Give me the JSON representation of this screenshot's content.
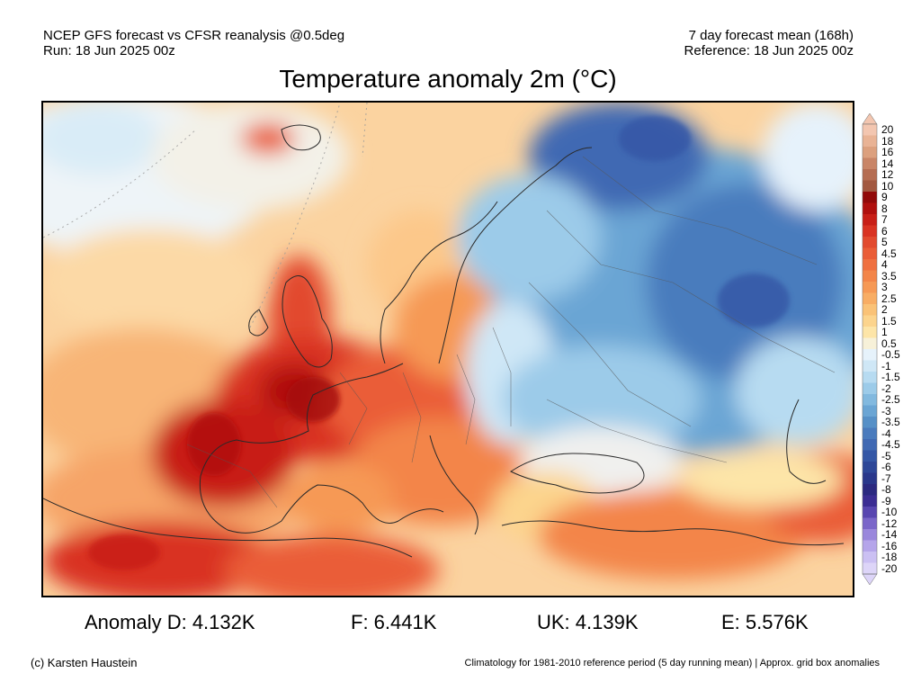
{
  "header": {
    "left_line1": "NCEP GFS forecast vs CFSR reanalysis @0.5deg",
    "left_line2": "Run: 18 Jun 2025 00z",
    "right_line1": "7 day forecast mean (168h)",
    "right_line2": "Reference: 18 Jun 2025 00z"
  },
  "title": "Temperature anomaly 2m (°C)",
  "colorbar": {
    "labels": [
      "20",
      "18",
      "16",
      "14",
      "12",
      "10",
      "9",
      "8",
      "7",
      "6",
      "5",
      "4.5",
      "4",
      "3.5",
      "3",
      "2.5",
      "2",
      "1.5",
      "1",
      "0.5",
      "-0.5",
      "-1",
      "-1.5",
      "-2",
      "-2.5",
      "-3",
      "-3.5",
      "-4",
      "-4.5",
      "-5",
      "-6",
      "-7",
      "-8",
      "-9",
      "-10",
      "-12",
      "-14",
      "-16",
      "-18",
      "-20"
    ],
    "colors": [
      "#f3c6b0",
      "#e9b395",
      "#dca07e",
      "#c98567",
      "#b56d52",
      "#a25840",
      "#920a0a",
      "#b0100e",
      "#c81f17",
      "#d93322",
      "#e24a2e",
      "#ea5d37",
      "#ef7040",
      "#f38549",
      "#f69955",
      "#f8ad64",
      "#fac277",
      "#fcd48d",
      "#fde5a8",
      "#f7f1d9",
      "#e6f2fb",
      "#cfe7f6",
      "#b7dbf1",
      "#9ccbe9",
      "#82b9df",
      "#6aa5d4",
      "#5690c7",
      "#4a7bbd",
      "#4069b3",
      "#3457a6",
      "#2d4798",
      "#29378b",
      "#2b2980",
      "#3b2d93",
      "#5846b0",
      "#7a66c9",
      "#9a87dc",
      "#b5a5ea",
      "#cbc0f3",
      "#ddd5f8"
    ]
  },
  "stats": {
    "d": "Anomaly D: 4.132K",
    "f": "F: 6.441K",
    "uk": "UK: 4.139K",
    "e": "E: 5.576K"
  },
  "footer": {
    "left": "(c) Karsten Haustein",
    "right": "Climatology for 1981-2010 reference period (5 day running mean) | Approx. grid box anomalies"
  }
}
